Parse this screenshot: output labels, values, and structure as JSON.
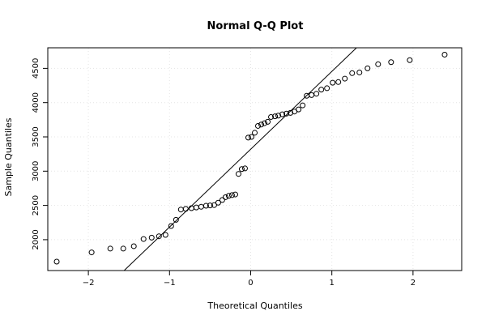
{
  "chart_data": {
    "type": "scatter",
    "title": "Normal Q-Q Plot",
    "xlabel": "Theoretical Quantiles",
    "ylabel": "Sample Quantiles",
    "xlim": [
      -2.5,
      2.6
    ],
    "ylim": [
      1550,
      4800
    ],
    "x_ticks": [
      -2,
      -1,
      0,
      1,
      2
    ],
    "x_tick_labels": [
      "−2",
      "−1",
      "0",
      "1",
      "2"
    ],
    "y_ticks": [
      2000,
      2500,
      3000,
      3500,
      4000,
      4500
    ],
    "y_tick_labels": [
      "2000",
      "2500",
      "3000",
      "3500",
      "4000",
      "4500"
    ],
    "grid": true,
    "points": [
      {
        "x": -2.39,
        "y": 1680
      },
      {
        "x": -1.96,
        "y": 1815
      },
      {
        "x": -1.73,
        "y": 1870
      },
      {
        "x": -1.57,
        "y": 1870
      },
      {
        "x": -1.44,
        "y": 1905
      },
      {
        "x": -1.32,
        "y": 2010
      },
      {
        "x": -1.22,
        "y": 2030
      },
      {
        "x": -1.13,
        "y": 2050
      },
      {
        "x": -1.05,
        "y": 2070
      },
      {
        "x": -0.98,
        "y": 2200
      },
      {
        "x": -0.92,
        "y": 2290
      },
      {
        "x": -0.86,
        "y": 2440
      },
      {
        "x": -0.8,
        "y": 2450
      },
      {
        "x": -0.73,
        "y": 2460
      },
      {
        "x": -0.67,
        "y": 2470
      },
      {
        "x": -0.61,
        "y": 2480
      },
      {
        "x": -0.55,
        "y": 2495
      },
      {
        "x": -0.5,
        "y": 2500
      },
      {
        "x": -0.45,
        "y": 2505
      },
      {
        "x": -0.4,
        "y": 2540
      },
      {
        "x": -0.35,
        "y": 2580
      },
      {
        "x": -0.31,
        "y": 2620
      },
      {
        "x": -0.27,
        "y": 2640
      },
      {
        "x": -0.23,
        "y": 2650
      },
      {
        "x": -0.19,
        "y": 2660
      },
      {
        "x": -0.15,
        "y": 2960
      },
      {
        "x": -0.11,
        "y": 3030
      },
      {
        "x": -0.07,
        "y": 3040
      },
      {
        "x": -0.03,
        "y": 3490
      },
      {
        "x": 0.01,
        "y": 3500
      },
      {
        "x": 0.05,
        "y": 3560
      },
      {
        "x": 0.09,
        "y": 3660
      },
      {
        "x": 0.13,
        "y": 3680
      },
      {
        "x": 0.17,
        "y": 3700
      },
      {
        "x": 0.21,
        "y": 3720
      },
      {
        "x": 0.25,
        "y": 3790
      },
      {
        "x": 0.3,
        "y": 3800
      },
      {
        "x": 0.34,
        "y": 3810
      },
      {
        "x": 0.39,
        "y": 3830
      },
      {
        "x": 0.44,
        "y": 3840
      },
      {
        "x": 0.49,
        "y": 3850
      },
      {
        "x": 0.54,
        "y": 3870
      },
      {
        "x": 0.59,
        "y": 3900
      },
      {
        "x": 0.64,
        "y": 3960
      },
      {
        "x": 0.69,
        "y": 4100
      },
      {
        "x": 0.75,
        "y": 4110
      },
      {
        "x": 0.81,
        "y": 4130
      },
      {
        "x": 0.87,
        "y": 4190
      },
      {
        "x": 0.94,
        "y": 4210
      },
      {
        "x": 1.01,
        "y": 4290
      },
      {
        "x": 1.08,
        "y": 4300
      },
      {
        "x": 1.16,
        "y": 4350
      },
      {
        "x": 1.25,
        "y": 4430
      },
      {
        "x": 1.34,
        "y": 4440
      },
      {
        "x": 1.44,
        "y": 4500
      },
      {
        "x": 1.57,
        "y": 4560
      },
      {
        "x": 1.73,
        "y": 4590
      },
      {
        "x": 1.96,
        "y": 4620
      },
      {
        "x": 2.39,
        "y": 4700
      }
    ],
    "reference_line": {
      "intercept": 3320,
      "slope": 1135
    }
  }
}
